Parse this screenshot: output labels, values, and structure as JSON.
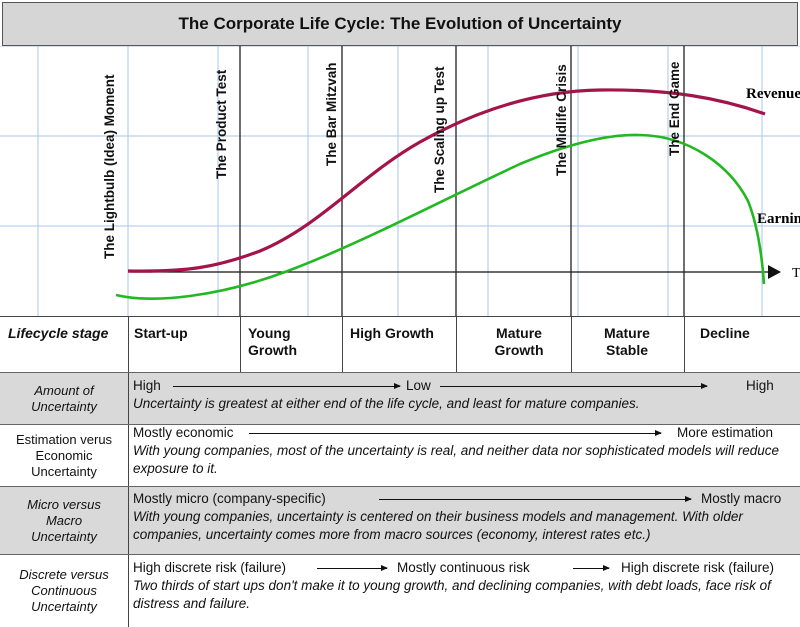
{
  "title": "The Corporate Life Cycle: The Evolution of Uncertainty",
  "chart": {
    "milestones": [
      "The Lightbulb (Idea) Moment",
      "The Product Test",
      "The Bar Mitzvah",
      "The Scaling up Test",
      "The Midlife Crisis",
      "The End Game"
    ],
    "revenue_label": "Revenue",
    "earnings_label": "Earnings",
    "axis_label": "T",
    "colors": {
      "revenue": "#a3154a",
      "earnings": "#22b822",
      "grid": "#a9c4e8"
    }
  },
  "stages": {
    "header": "Lifecycle stage",
    "items": [
      "Start-up",
      "Young Growth",
      "High Growth",
      "Mature Growth",
      "Mature Stable",
      "Decline"
    ]
  },
  "rows": [
    {
      "label": "Amount of Uncertainty",
      "scale": [
        "High",
        "Low",
        "High"
      ],
      "desc": "Uncertainty is greatest at either end of the life cycle, and least for mature companies."
    },
    {
      "label": "Estimation verus Economic Uncertainty",
      "scale": [
        "Mostly economic",
        "More estimation"
      ],
      "desc": "With young companies, most of the uncertainty is real, and neither data nor sophisticated models will reduce exposure to it."
    },
    {
      "label": "Micro versus Macro Uncertainty",
      "scale": [
        "Mostly micro (company-specific)",
        "Mostly macro"
      ],
      "desc": "With young companies, uncertainty is centered on their business models and management. With older companies, uncertainty comes more from macro sources (economy, interest rates etc.)"
    },
    {
      "label": "Discrete versus Continuous Uncertainty",
      "scale": [
        "High discrete risk (failure)",
        "Mostly continuous risk",
        "High discrete risk (failure)"
      ],
      "desc": "Two thirds of start ups don't make it to young growth, and declining companies, with debt loads, face risk of distress and failure."
    }
  ]
}
